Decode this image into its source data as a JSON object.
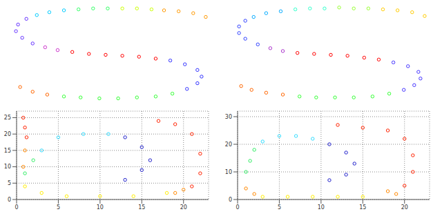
{
  "chart_data": [
    {
      "type": "scatter",
      "xlim": [
        0,
        10
      ],
      "ylim": [
        0,
        10.5
      ],
      "grid": false,
      "tick_labels": false,
      "marker": "circle",
      "series": [
        {
          "color": "#ff9900",
          "values": [
            [
              9.6,
              9.0
            ],
            [
              9.0,
              9.4
            ],
            [
              8.3,
              9.6
            ],
            [
              7.6,
              9.7
            ]
          ]
        },
        {
          "color": "#ccff00",
          "values": [
            [
              7.0,
              9.8
            ],
            [
              6.3,
              9.9
            ],
            [
              5.6,
              9.9
            ]
          ]
        },
        {
          "color": "#33ff66",
          "values": [
            [
              4.9,
              9.9
            ],
            [
              4.2,
              9.9
            ],
            [
              3.5,
              9.8
            ]
          ]
        },
        {
          "color": "#00ccff",
          "values": [
            [
              2.8,
              9.7
            ],
            [
              2.1,
              9.5
            ],
            [
              1.5,
              9.2
            ]
          ]
        },
        {
          "color": "#6633ff",
          "values": [
            [
              1.0,
              8.8
            ],
            [
              0.6,
              8.2
            ],
            [
              0.5,
              7.5
            ],
            [
              0.8,
              6.8
            ],
            [
              1.3,
              6.2
            ]
          ]
        },
        {
          "color": "#cc33cc",
          "values": [
            [
              1.9,
              5.8
            ],
            [
              2.5,
              5.5
            ]
          ]
        },
        {
          "color": "#ff0000",
          "values": [
            [
              3.2,
              5.3
            ],
            [
              4.0,
              5.1
            ],
            [
              4.8,
              5.0
            ],
            [
              5.6,
              4.9
            ],
            [
              6.4,
              4.8
            ],
            [
              7.2,
              4.6
            ]
          ]
        },
        {
          "color": "#3333ff",
          "values": [
            [
              7.9,
              4.4
            ],
            [
              8.6,
              4.0
            ],
            [
              9.2,
              3.4
            ],
            [
              9.4,
              2.7
            ],
            [
              9.2,
              2.0
            ],
            [
              8.7,
              1.4
            ]
          ]
        },
        {
          "color": "#33ff33",
          "values": [
            [
              8.0,
              0.9
            ],
            [
              7.2,
              0.6
            ],
            [
              6.3,
              0.5
            ],
            [
              5.4,
              0.4
            ],
            [
              4.5,
              0.4
            ],
            [
              3.6,
              0.5
            ],
            [
              2.8,
              0.6
            ]
          ]
        },
        {
          "color": "#ff6600",
          "values": [
            [
              2.0,
              0.8
            ],
            [
              1.3,
              1.1
            ],
            [
              0.7,
              1.6
            ]
          ]
        }
      ]
    },
    {
      "type": "scatter",
      "xlim": [
        0,
        10
      ],
      "ylim": [
        0,
        10.5
      ],
      "grid": false,
      "tick_labels": false,
      "marker": "circle",
      "series": [
        {
          "color": "#ffcc00",
          "values": [
            [
              9.5,
              9.1
            ],
            [
              8.9,
              9.5
            ],
            [
              8.2,
              9.7
            ],
            [
              7.5,
              9.8
            ]
          ]
        },
        {
          "color": "#99ff33",
          "values": [
            [
              6.8,
              9.9
            ],
            [
              6.1,
              9.9
            ],
            [
              5.4,
              10.0
            ]
          ]
        },
        {
          "color": "#33ffcc",
          "values": [
            [
              4.7,
              9.9
            ],
            [
              4.0,
              9.9
            ],
            [
              3.3,
              9.8
            ]
          ]
        },
        {
          "color": "#00aaff",
          "values": [
            [
              2.6,
              9.6
            ],
            [
              1.9,
              9.4
            ],
            [
              1.3,
              9.0
            ]
          ]
        },
        {
          "color": "#3344ff",
          "values": [
            [
              0.9,
              8.6
            ],
            [
              0.6,
              8.0
            ],
            [
              0.6,
              7.3
            ],
            [
              0.9,
              6.7
            ],
            [
              1.5,
              6.1
            ]
          ]
        },
        {
          "color": "#aa33cc",
          "values": [
            [
              2.1,
              5.7
            ],
            [
              2.7,
              5.4
            ]
          ]
        },
        {
          "color": "#ff0000",
          "values": [
            [
              3.4,
              5.2
            ],
            [
              4.2,
              5.1
            ],
            [
              5.0,
              5.0
            ],
            [
              5.8,
              4.9
            ],
            [
              6.6,
              4.7
            ],
            [
              7.3,
              4.5
            ]
          ]
        },
        {
          "color": "#4433ff",
          "values": [
            [
              8.0,
              4.2
            ],
            [
              8.7,
              3.8
            ],
            [
              9.2,
              3.2
            ],
            [
              9.3,
              2.5
            ],
            [
              9.0,
              1.8
            ],
            [
              8.5,
              1.3
            ]
          ]
        },
        {
          "color": "#33ff33",
          "values": [
            [
              7.8,
              0.9
            ],
            [
              7.0,
              0.6
            ],
            [
              6.1,
              0.5
            ],
            [
              5.2,
              0.5
            ],
            [
              4.3,
              0.5
            ],
            [
              3.5,
              0.6
            ]
          ]
        },
        {
          "color": "#ff6600",
          "values": [
            [
              2.7,
              0.8
            ],
            [
              1.9,
              1.0
            ],
            [
              1.2,
              1.3
            ],
            [
              0.7,
              1.7
            ]
          ]
        }
      ]
    },
    {
      "type": "scatter",
      "xlim": [
        0,
        23
      ],
      "ylim": [
        0,
        27
      ],
      "xticks": [
        0,
        5,
        10,
        15,
        20
      ],
      "yticks": [
        0,
        5,
        10,
        15,
        20,
        25
      ],
      "grid": true,
      "marker": "circle",
      "series": [
        {
          "color": "#ff2200",
          "values": [
            [
              0.8,
              25
            ],
            [
              1.0,
              22
            ],
            [
              1.2,
              19
            ],
            [
              17,
              24
            ],
            [
              19,
              23
            ],
            [
              21,
              20
            ],
            [
              22,
              14
            ],
            [
              22,
              8
            ],
            [
              21,
              4
            ]
          ]
        },
        {
          "color": "#ff8800",
          "values": [
            [
              1.0,
              15
            ],
            [
              0.8,
              10
            ],
            [
              19,
              2
            ],
            [
              20,
              3
            ]
          ]
        },
        {
          "color": "#ffee00",
          "values": [
            [
              1.0,
              4
            ],
            [
              3,
              2
            ],
            [
              6,
              1
            ],
            [
              10,
              1
            ],
            [
              14,
              1
            ],
            [
              18,
              2
            ]
          ]
        },
        {
          "color": "#33ee66",
          "values": [
            [
              1.0,
              8
            ],
            [
              2,
              12
            ]
          ]
        },
        {
          "color": "#33ddff",
          "values": [
            [
              3,
              15
            ],
            [
              5,
              19
            ],
            [
              8,
              20
            ],
            [
              11,
              20
            ]
          ]
        },
        {
          "color": "#2222cc",
          "values": [
            [
              13,
              19
            ],
            [
              15,
              16
            ],
            [
              16,
              12
            ],
            [
              15,
              9
            ],
            [
              13,
              6
            ]
          ]
        }
      ]
    },
    {
      "type": "scatter",
      "xlim": [
        0,
        23
      ],
      "ylim": [
        0,
        32
      ],
      "xticks": [
        0,
        5,
        10,
        15,
        20
      ],
      "yticks": [
        0,
        10,
        20,
        30
      ],
      "grid": true,
      "marker": "circle",
      "series": [
        {
          "color": "#ff2200",
          "values": [
            [
              12,
              27
            ],
            [
              15,
              26
            ],
            [
              18,
              25
            ],
            [
              20,
              22
            ],
            [
              21,
              16
            ],
            [
              21,
              10
            ],
            [
              20,
              5
            ]
          ]
        },
        {
          "color": "#ff8800",
          "values": [
            [
              1,
              4
            ],
            [
              2,
              2
            ],
            [
              18,
              3
            ],
            [
              19,
              2
            ]
          ]
        },
        {
          "color": "#ffee00",
          "values": [
            [
              3,
              1
            ],
            [
              6,
              1
            ],
            [
              9,
              1
            ],
            [
              12,
              1
            ],
            [
              15,
              1
            ]
          ]
        },
        {
          "color": "#33ee66",
          "values": [
            [
              1,
              10
            ],
            [
              1.5,
              14
            ],
            [
              2,
              18
            ]
          ]
        },
        {
          "color": "#33ddff",
          "values": [
            [
              3,
              21
            ],
            [
              5,
              23
            ],
            [
              7,
              23
            ],
            [
              9,
              22
            ]
          ]
        },
        {
          "color": "#2222cc",
          "values": [
            [
              11,
              20
            ],
            [
              13,
              17
            ],
            [
              14,
              13
            ],
            [
              13,
              9
            ],
            [
              11,
              7
            ]
          ]
        }
      ]
    }
  ]
}
